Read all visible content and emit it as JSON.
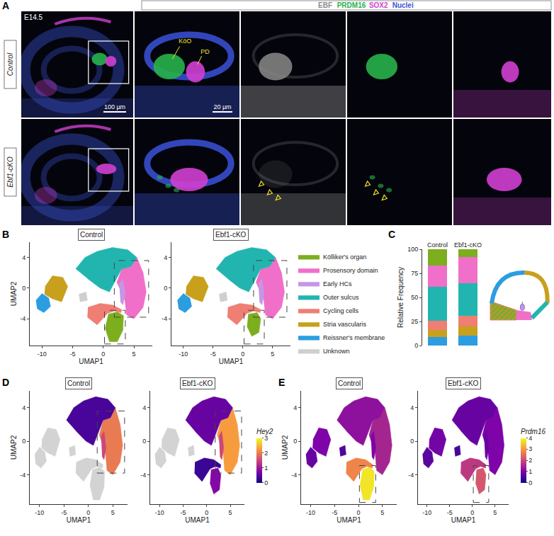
{
  "panel_a": {
    "letter": "A",
    "stage": "E14.5",
    "channels": [
      {
        "name": "EBF",
        "color": "#8a8a8a"
      },
      {
        "name": "PRDM16",
        "color": "#27b34a"
      },
      {
        "name": "SOX2",
        "color": "#d23fd2"
      },
      {
        "name": "Nuclei",
        "color": "#3b52d9"
      }
    ],
    "rows": [
      "Control",
      "Ebf1-cKO"
    ],
    "scale_bars": [
      "100 µm",
      "20 µm"
    ],
    "region_labels": [
      "KöO",
      "PD"
    ]
  },
  "chart_data": [
    {
      "type": "region_map",
      "letter": "B",
      "panel_title": "Control",
      "xlabel": "UMAP1",
      "ylabel": "UMAP2",
      "xlim": [
        -12,
        8
      ],
      "ylim": [
        -7.5,
        6
      ],
      "xticks": [
        -10,
        -5,
        0,
        5
      ],
      "yticks": [
        -4,
        0,
        4
      ],
      "legend": "right",
      "regions": [
        {
          "name": "Kölliker's organ",
          "color": "#7cae1e",
          "polygon": [
            [
              0.8,
              -3.4
            ],
            [
              2.3,
              -3.1
            ],
            [
              3.3,
              -3.6
            ],
            [
              3.2,
              -5.5
            ],
            [
              2.3,
              -7
            ],
            [
              1,
              -7
            ],
            [
              0.3,
              -5.2
            ]
          ]
        },
        {
          "name": "Prosensory domain",
          "color": "#f06fc8",
          "polygon": [
            [
              3,
              2.5
            ],
            [
              4.5,
              2.8
            ],
            [
              5.5,
              4
            ],
            [
              6.5,
              2
            ],
            [
              7,
              -0.5
            ],
            [
              6.5,
              -2.5
            ],
            [
              5,
              -4
            ],
            [
              3.8,
              -3.5
            ],
            [
              3.5,
              -1.5
            ],
            [
              2.2,
              0.8
            ]
          ]
        },
        {
          "name": "Early HCs",
          "color": "#c497e6",
          "polygon": [
            [
              2.6,
              0.6
            ],
            [
              3.2,
              1.2
            ],
            [
              3.6,
              -0.8
            ],
            [
              3.2,
              -2.2
            ],
            [
              2.8,
              -1.8
            ]
          ]
        },
        {
          "name": "Outer sulcus",
          "color": "#22b5b0",
          "polygon": [
            [
              -4.5,
              2.5
            ],
            [
              -3,
              4
            ],
            [
              -1,
              4.8
            ],
            [
              1.5,
              5.3
            ],
            [
              4,
              5
            ],
            [
              5.5,
              4
            ],
            [
              4.5,
              2.8
            ],
            [
              3,
              2.5
            ],
            [
              2,
              1
            ],
            [
              1,
              -0.5
            ],
            [
              -0.5,
              0
            ],
            [
              -2.5,
              1.2
            ]
          ]
        },
        {
          "name": "Cycling cells",
          "color": "#ef7f73",
          "polygon": [
            [
              -2.5,
              -2.5
            ],
            [
              -0.5,
              -2
            ],
            [
              1.5,
              -2.2
            ],
            [
              3,
              -2.8
            ],
            [
              2.9,
              -3.2
            ],
            [
              1.8,
              -3
            ],
            [
              0.7,
              -3.3
            ],
            [
              -1,
              -4.8
            ],
            [
              -2.6,
              -3.8
            ]
          ]
        },
        {
          "name": "Stria vascularis",
          "color": "#c8a01c",
          "polygon": [
            [
              -9.5,
              0.2
            ],
            [
              -8.3,
              1.6
            ],
            [
              -6.6,
              1.4
            ],
            [
              -5.8,
              0.2
            ],
            [
              -6.8,
              -1.8
            ],
            [
              -8.3,
              -1.4
            ],
            [
              -9.6,
              -0.8
            ]
          ]
        },
        {
          "name": "Reissner's membrane",
          "color": "#2c9de0",
          "polygon": [
            [
              -11,
              -1.6
            ],
            [
              -10,
              -0.7
            ],
            [
              -8.9,
              -1.3
            ],
            [
              -8.6,
              -2.4
            ],
            [
              -9.7,
              -3.2
            ],
            [
              -10.8,
              -2.7
            ]
          ]
        },
        {
          "name": "Unknown",
          "color": "#cfcfcf",
          "polygon": [
            [
              -4,
              -0.8
            ],
            [
              -2.8,
              -0.5
            ],
            [
              -2.6,
              -1.6
            ],
            [
              -3.8,
              -1.8
            ]
          ]
        }
      ],
      "boxes": [
        [
          1.8,
          -3.8,
          7.4,
          3.6
        ],
        [
          0.2,
          -7.3,
          3.6,
          -2.9
        ]
      ]
    },
    {
      "type": "region_map",
      "panel_title": "Ebf1-cKO",
      "xlabel": "UMAP1",
      "xlim": [
        -12,
        8
      ],
      "ylim": [
        -7.5,
        6
      ],
      "xticks": [
        -10,
        -5,
        0,
        5
      ],
      "yticks": [
        -4,
        0,
        4
      ],
      "regions": [
        {
          "name": "Kölliker's organ",
          "color": "#7cae1e",
          "polygon": [
            [
              0.9,
              -3.4
            ],
            [
              2.4,
              -3.2
            ],
            [
              3,
              -4
            ],
            [
              2.7,
              -5.8
            ],
            [
              1.5,
              -6.3
            ],
            [
              0.7,
              -5
            ]
          ]
        },
        {
          "name": "Prosensory domain",
          "color": "#f06fc8",
          "polygon": [
            [
              3,
              2.5
            ],
            [
              4.5,
              2.8
            ],
            [
              5.5,
              4
            ],
            [
              6.5,
              2
            ],
            [
              7,
              -0.5
            ],
            [
              6.5,
              -2.5
            ],
            [
              5,
              -4
            ],
            [
              3.8,
              -3.5
            ],
            [
              3.5,
              -1.5
            ],
            [
              2.2,
              0.8
            ]
          ]
        },
        {
          "name": "Early HCs",
          "color": "#c497e6",
          "polygon": [
            [
              2.6,
              0.6
            ],
            [
              3.2,
              1.2
            ],
            [
              3.6,
              -0.8
            ],
            [
              3.2,
              -2.2
            ],
            [
              2.8,
              -1.8
            ]
          ]
        },
        {
          "name": "Outer sulcus",
          "color": "#22b5b0",
          "polygon": [
            [
              -4.5,
              2.5
            ],
            [
              -3,
              4
            ],
            [
              -1,
              4.8
            ],
            [
              1.5,
              5.3
            ],
            [
              4,
              5
            ],
            [
              5.5,
              4
            ],
            [
              4.5,
              2.8
            ],
            [
              3,
              2.5
            ],
            [
              2,
              1
            ],
            [
              1,
              -0.5
            ],
            [
              -0.5,
              0
            ],
            [
              -2.5,
              1.2
            ]
          ]
        },
        {
          "name": "Cycling cells",
          "color": "#ef7f73",
          "polygon": [
            [
              -2.5,
              -2.5
            ],
            [
              -0.5,
              -2
            ],
            [
              1.5,
              -2.2
            ],
            [
              3,
              -2.8
            ],
            [
              2.9,
              -3.2
            ],
            [
              1.8,
              -3
            ],
            [
              0.7,
              -3.3
            ],
            [
              -1,
              -4.8
            ],
            [
              -2.6,
              -3.8
            ]
          ]
        },
        {
          "name": "Stria vascularis",
          "color": "#c8a01c",
          "polygon": [
            [
              -9.5,
              0.2
            ],
            [
              -8.3,
              1.6
            ],
            [
              -6.6,
              1.4
            ],
            [
              -5.8,
              0.2
            ],
            [
              -6.8,
              -1.8
            ],
            [
              -8.3,
              -1.4
            ],
            [
              -9.6,
              -0.8
            ]
          ]
        },
        {
          "name": "Reissner's membrane",
          "color": "#2c9de0",
          "polygon": [
            [
              -11,
              -1.6
            ],
            [
              -10,
              -0.7
            ],
            [
              -8.9,
              -1.3
            ],
            [
              -8.6,
              -2.4
            ],
            [
              -9.7,
              -3.2
            ],
            [
              -10.8,
              -2.7
            ]
          ]
        },
        {
          "name": "Unknown",
          "color": "#cfcfcf",
          "polygon": [
            [
              -4,
              -0.8
            ],
            [
              -2.8,
              -0.5
            ],
            [
              -2.6,
              -1.6
            ],
            [
              -3.8,
              -1.8
            ]
          ]
        }
      ],
      "boxes": [
        [
          1.8,
          -3.8,
          7.4,
          3.6
        ],
        [
          0.2,
          -7.3,
          3.6,
          -2.9
        ]
      ]
    },
    {
      "type": "bar",
      "letter": "C",
      "stacked": true,
      "categories": [
        "Control",
        "Ebf1-cKO"
      ],
      "ylabel": "Relative Frequency",
      "ylim": [
        0,
        100
      ],
      "yticks": [
        0,
        25,
        50,
        75,
        100
      ],
      "series": [
        {
          "name": "Reissner's membrane",
          "color": "#2c9de0",
          "values": [
            9,
            10
          ]
        },
        {
          "name": "Stria vascularis",
          "color": "#c8a01c",
          "values": [
            7,
            10
          ]
        },
        {
          "name": "Cycling cells",
          "color": "#ef7f73",
          "values": [
            10,
            11
          ]
        },
        {
          "name": "Outer sulcus",
          "color": "#22b5b0",
          "values": [
            35,
            34
          ]
        },
        {
          "name": "Prosensory domain",
          "color": "#f06fc8",
          "values": [
            22,
            27
          ]
        },
        {
          "name": "Kölliker's organ",
          "color": "#7cae1e",
          "values": [
            17,
            8
          ]
        }
      ]
    },
    {
      "type": "feature_map",
      "letter": "D",
      "panel_title": "Control",
      "xlabel": "UMAP1",
      "ylabel": "UMAP2",
      "xlim": [
        -12,
        8
      ],
      "ylim": [
        -7.5,
        6
      ],
      "xticks": [
        -10,
        -5,
        0,
        5
      ],
      "yticks": [
        -4,
        0,
        4
      ],
      "levels": [
        {
          "cluster": "Prosensory domain",
          "value": 2
        },
        {
          "cluster": "Early HCs",
          "value": 1.5
        },
        {
          "cluster": "Outer sulcus",
          "value": 0.4
        }
      ],
      "boxes": [
        [
          1.8,
          -3.8,
          7.4,
          3.6
        ]
      ]
    },
    {
      "type": "feature_map",
      "panel_title": "Ebf1-cKO",
      "xlabel": "UMAP1",
      "xlim": [
        -12,
        8
      ],
      "ylim": [
        -7.5,
        6
      ],
      "xticks": [
        -10,
        -5,
        0,
        5
      ],
      "yticks": [
        -4,
        0,
        4
      ],
      "levels": [
        {
          "cluster": "Prosensory domain",
          "value": 2.3
        },
        {
          "cluster": "Early HCs",
          "value": 1.5
        },
        {
          "cluster": "Outer sulcus",
          "value": 0.6
        },
        {
          "cluster": "Kölliker's organ",
          "value": 0.8
        },
        {
          "cluster": "Cycling cells",
          "value": 0.3
        }
      ],
      "boxes": [
        [
          1.8,
          -3.8,
          7.4,
          3.6
        ]
      ],
      "colorbar": {
        "title": "Hey2",
        "range": [
          0,
          3
        ],
        "ticks": [
          0,
          1,
          2,
          3
        ]
      }
    },
    {
      "type": "feature_map",
      "letter": "E",
      "panel_title": "Control",
      "xlabel": "UMAP1",
      "ylabel": "UMAP2",
      "xlim": [
        -12,
        8
      ],
      "ylim": [
        -7.5,
        6
      ],
      "xticks": [
        -10,
        -5,
        0,
        5
      ],
      "yticks": [
        -4,
        0,
        4
      ],
      "levels": [
        {
          "cluster": "Kölliker's organ",
          "value": 3.8
        },
        {
          "cluster": "Prosensory domain",
          "value": 1.5
        },
        {
          "cluster": "Early HCs",
          "value": 1
        },
        {
          "cluster": "Outer sulcus",
          "value": 1.2
        },
        {
          "cluster": "Cycling cells",
          "value": 2.8
        },
        {
          "cluster": "Stria vascularis",
          "value": 1
        },
        {
          "cluster": "Reissner's membrane",
          "value": 0.8
        },
        {
          "cluster": "Unknown",
          "value": 0.6
        }
      ],
      "boxes": [
        [
          0.2,
          -7.3,
          3.6,
          -2.9
        ]
      ]
    },
    {
      "type": "feature_map",
      "panel_title": "Ebf1-cKO",
      "xlabel": "UMAP1",
      "xlim": [
        -12,
        8
      ],
      "ylim": [
        -7.5,
        6
      ],
      "xticks": [
        -10,
        -5,
        0,
        5
      ],
      "yticks": [
        -4,
        0,
        4
      ],
      "levels": [
        {
          "cluster": "Kölliker's organ",
          "value": 2.2
        },
        {
          "cluster": "Prosensory domain",
          "value": 1
        },
        {
          "cluster": "Early HCs",
          "value": 0.8
        },
        {
          "cluster": "Outer sulcus",
          "value": 0.8
        },
        {
          "cluster": "Cycling cells",
          "value": 1.8
        },
        {
          "cluster": "Stria vascularis",
          "value": 0.9
        },
        {
          "cluster": "Reissner's membrane",
          "value": 0.7
        },
        {
          "cluster": "Unknown",
          "value": 0.5
        }
      ],
      "boxes": [
        [
          0.2,
          -7.3,
          3.6,
          -2.9
        ]
      ],
      "colorbar": {
        "title": "Prdm16",
        "range": [
          0,
          4
        ],
        "ticks": [
          0,
          1,
          2,
          3,
          4
        ]
      }
    }
  ]
}
